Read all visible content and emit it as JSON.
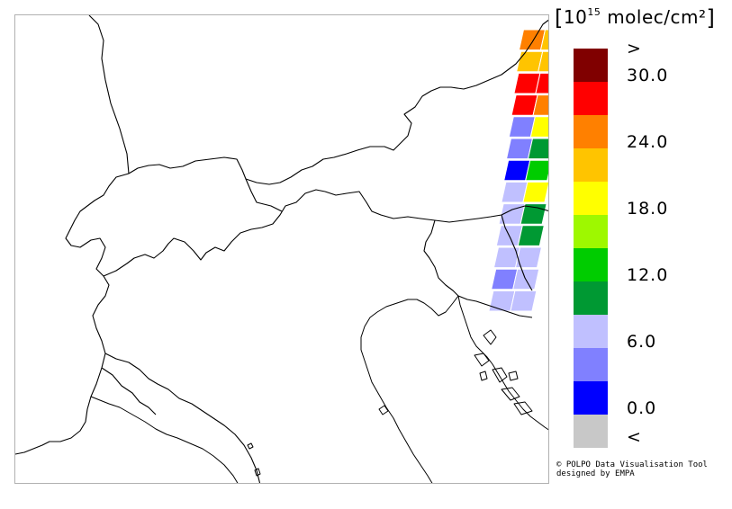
{
  "legend": {
    "unit_prefix": "10",
    "unit_exp": "15",
    "unit_suffix": "molec/cm²",
    "labels": [
      ">",
      "30.0",
      "24.0",
      "18.0",
      "12.0",
      "6.0",
      "0.0",
      "<"
    ],
    "colors": [
      "#800000",
      "#ff0000",
      "#ff8000",
      "#ffc400",
      "#ffff00",
      "#9ef800",
      "#00cc00",
      "#009933",
      "#c0c0ff",
      "#8080ff",
      "#0000ff",
      "#c8c8c8"
    ]
  },
  "credit": {
    "line1": "© POLPO Data Visualisation Tool",
    "line2": "designed by EMPA"
  },
  "data_swath": {
    "pixels": [
      [
        "#ff8000",
        "#ffc400"
      ],
      [
        "#ffc400",
        "#ffc400"
      ],
      [
        "#ff0000",
        "#ff0000"
      ],
      [
        "#ff0000",
        "#ff8000"
      ],
      [
        "#8080ff",
        "#ffff00"
      ],
      [
        "#8080ff",
        "#009933"
      ],
      [
        "#0000ff",
        "#00cc00"
      ],
      [
        "#c0c0ff",
        "#ffff00"
      ],
      [
        "#c0c0ff",
        "#009933"
      ],
      [
        "#c0c0ff",
        "#009933"
      ],
      [
        "#c0c0ff",
        "#c0c0ff"
      ],
      [
        "#8080ff",
        "#c0c0ff"
      ],
      [
        "#c0c0ff",
        "#c0c0ff"
      ]
    ]
  }
}
